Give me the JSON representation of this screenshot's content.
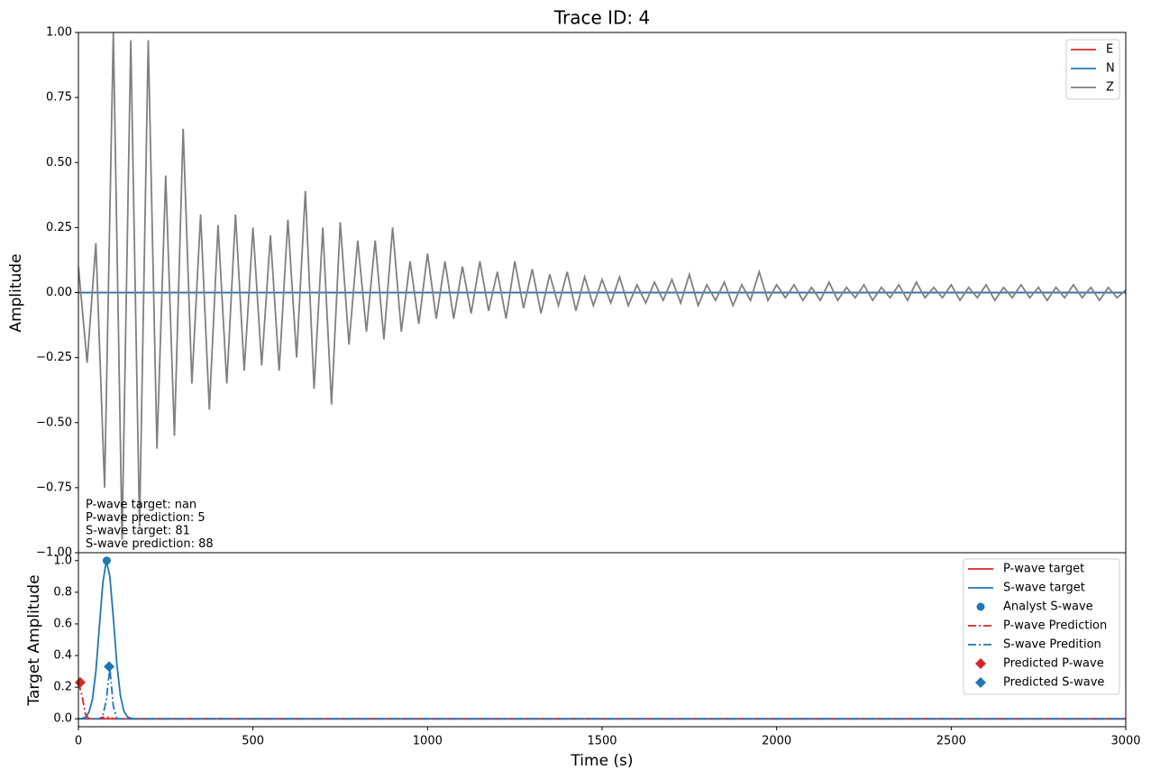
{
  "chart_data": [
    {
      "type": "line",
      "title": "Trace ID: 4",
      "ylabel": "Amplitude",
      "xlim": [
        0,
        3000
      ],
      "ylim": [
        -1,
        1
      ],
      "yticks": [
        {
          "value": -1,
          "label": "−1.00"
        },
        {
          "value": -0.75,
          "label": "−0.75"
        },
        {
          "value": -0.5,
          "label": "−0.50"
        },
        {
          "value": -0.25,
          "label": "−0.25"
        },
        {
          "value": 0,
          "label": "0.00"
        },
        0.25,
        {
          "value": 0.5,
          "label": "0.50"
        },
        0.75,
        {
          "value": 1,
          "label": "1.00"
        }
      ],
      "legend": "upper right",
      "annotations": [
        "P-wave target: nan",
        "P-wave prediction: 5",
        "S-wave target: 81",
        "S-wave prediction: 88"
      ],
      "x": [
        0,
        25,
        50,
        75,
        100,
        125,
        150,
        175,
        200,
        225,
        250,
        275,
        300,
        325,
        350,
        375,
        400,
        425,
        450,
        475,
        500,
        525,
        550,
        575,
        600,
        625,
        650,
        675,
        700,
        725,
        750,
        775,
        800,
        825,
        850,
        875,
        900,
        925,
        950,
        975,
        1000,
        1025,
        1050,
        1075,
        1100,
        1125,
        1150,
        1175,
        1200,
        1225,
        1250,
        1275,
        1300,
        1325,
        1350,
        1375,
        1400,
        1425,
        1450,
        1475,
        1500,
        1525,
        1550,
        1575,
        1600,
        1625,
        1650,
        1675,
        1700,
        1725,
        1750,
        1775,
        1800,
        1825,
        1850,
        1875,
        1900,
        1925,
        1950,
        1975,
        2000,
        2025,
        2050,
        2075,
        2100,
        2125,
        2150,
        2175,
        2200,
        2225,
        2250,
        2275,
        2300,
        2325,
        2350,
        2375,
        2400,
        2425,
        2450,
        2475,
        2500,
        2525,
        2550,
        2575,
        2600,
        2625,
        2650,
        2675,
        2700,
        2725,
        2750,
        2775,
        2800,
        2825,
        2850,
        2875,
        2900,
        2925,
        2950,
        2975,
        3000
      ],
      "series": [
        {
          "name": "E",
          "color": "#d62728",
          "values": [
            0,
            0,
            0,
            0,
            0,
            0,
            0,
            0,
            0,
            0,
            0,
            0,
            0,
            0,
            0,
            0,
            0,
            0,
            0,
            0,
            0,
            0,
            0,
            0,
            0,
            0,
            0,
            0,
            0,
            0,
            0,
            0,
            0,
            0,
            0,
            0,
            0,
            0,
            0,
            0,
            0,
            0,
            0,
            0,
            0,
            0,
            0,
            0,
            0,
            0,
            0,
            0,
            0,
            0,
            0,
            0,
            0,
            0,
            0,
            0,
            0,
            0,
            0,
            0,
            0,
            0,
            0,
            0,
            0,
            0,
            0,
            0,
            0,
            0,
            0,
            0,
            0,
            0,
            0,
            0,
            0,
            0,
            0,
            0,
            0,
            0,
            0,
            0,
            0,
            0,
            0,
            0,
            0,
            0,
            0,
            0,
            0,
            0,
            0,
            0,
            0,
            0,
            0,
            0,
            0,
            0,
            0,
            0,
            0,
            0,
            0,
            0,
            0,
            0,
            0,
            0,
            0,
            0,
            0,
            0,
            0
          ]
        },
        {
          "name": "N",
          "color": "#1f77b4",
          "values": [
            0,
            0,
            0,
            0,
            0,
            0,
            0,
            0,
            0,
            0,
            0,
            0,
            0,
            0,
            0,
            0,
            0,
            0,
            0,
            0,
            0,
            0,
            0,
            0,
            0,
            0,
            0,
            0,
            0,
            0,
            0,
            0,
            0,
            0,
            0,
            0,
            0,
            0,
            0,
            0,
            0,
            0,
            0,
            0,
            0,
            0,
            0,
            0,
            0,
            0,
            0,
            0,
            0,
            0,
            0,
            0,
            0,
            0,
            0,
            0,
            0,
            0,
            0,
            0,
            0,
            0,
            0,
            0,
            0,
            0,
            0,
            0,
            0,
            0,
            0,
            0,
            0,
            0,
            0,
            0,
            0,
            0,
            0,
            0,
            0,
            0,
            0,
            0,
            0,
            0,
            0,
            0,
            0,
            0,
            0,
            0,
            0,
            0,
            0,
            0,
            0,
            0,
            0,
            0,
            0,
            0,
            0,
            0,
            0,
            0,
            0,
            0,
            0,
            0,
            0,
            0,
            0,
            0,
            0,
            0,
            0
          ]
        },
        {
          "name": "Z",
          "color": "#808080",
          "values": [
            0.1,
            -0.27,
            0.19,
            -0.75,
            1.0,
            -0.95,
            0.97,
            -0.9,
            0.97,
            -0.6,
            0.45,
            -0.55,
            0.63,
            -0.35,
            0.3,
            -0.45,
            0.26,
            -0.35,
            0.3,
            -0.3,
            0.25,
            -0.28,
            0.22,
            -0.3,
            0.28,
            -0.25,
            0.39,
            -0.37,
            0.25,
            -0.43,
            0.27,
            -0.2,
            0.2,
            -0.15,
            0.2,
            -0.18,
            0.25,
            -0.15,
            0.12,
            -0.12,
            0.15,
            -0.1,
            0.12,
            -0.1,
            0.1,
            -0.08,
            0.12,
            -0.07,
            0.08,
            -0.1,
            0.12,
            -0.06,
            0.09,
            -0.08,
            0.07,
            -0.05,
            0.08,
            -0.07,
            0.06,
            -0.05,
            0.05,
            -0.04,
            0.06,
            -0.05,
            0.03,
            -0.04,
            0.04,
            -0.03,
            0.05,
            -0.04,
            0.07,
            -0.05,
            0.03,
            -0.03,
            0.04,
            -0.05,
            0.03,
            -0.03,
            0.08,
            -0.03,
            0.03,
            -0.02,
            0.03,
            -0.03,
            0.02,
            -0.03,
            0.04,
            -0.03,
            0.02,
            -0.02,
            0.03,
            -0.03,
            0.02,
            -0.02,
            0.03,
            -0.03,
            0.04,
            -0.02,
            0.02,
            -0.02,
            0.03,
            -0.03,
            0.02,
            -0.02,
            0.03,
            -0.03,
            0.02,
            -0.02,
            0.03,
            -0.02,
            0.02,
            -0.03,
            0.02,
            -0.02,
            0.03,
            -0.02,
            0.02,
            -0.03,
            0.02,
            -0.02,
            0.01
          ]
        }
      ]
    },
    {
      "type": "line",
      "ylabel": "Target Amplitude",
      "xlabel": "Time (s)",
      "xlim": [
        0,
        3000
      ],
      "ylim": [
        -0.05,
        1.05
      ],
      "xticks": [
        0,
        500,
        1000,
        1500,
        2000,
        2500,
        3000
      ],
      "yticks": [
        {
          "value": 0,
          "label": "0.0"
        },
        0.2,
        0.4,
        0.6,
        0.8,
        {
          "value": 1,
          "label": "1.0"
        }
      ],
      "legend": "upper right",
      "x": [
        0,
        10,
        20,
        30,
        40,
        50,
        60,
        70,
        80,
        90,
        100,
        110,
        120,
        130,
        140,
        150,
        160,
        200,
        3000
      ],
      "series": [
        {
          "name": "P-wave target",
          "color": "#d62728",
          "style": "solid",
          "values": [
            0,
            0,
            0,
            0,
            0,
            0,
            0,
            0,
            0,
            0,
            0,
            0,
            0,
            0,
            0,
            0,
            0,
            0,
            0
          ]
        },
        {
          "name": "S-wave target",
          "color": "#1f77b4",
          "style": "solid",
          "values": [
            0,
            0.002,
            0.01,
            0.04,
            0.12,
            0.3,
            0.58,
            0.86,
            1.0,
            0.9,
            0.64,
            0.35,
            0.15,
            0.05,
            0.013,
            0.003,
            0,
            0,
            0
          ]
        },
        {
          "name": "Analyst S-wave",
          "color": "#1f77b4",
          "style": "none",
          "marker": "circle",
          "x": [
            81
          ],
          "values": [
            1.0
          ]
        },
        {
          "name": "P-wave Prediction",
          "color": "#d62728",
          "style": "dashdot",
          "values": [
            0.23,
            0.15,
            0.03,
            0,
            0,
            0,
            0,
            0.01,
            0.01,
            0.01,
            0,
            0,
            0,
            0,
            0,
            0,
            0,
            0,
            0
          ]
        },
        {
          "name": "S-wave Predition",
          "color": "#1f77b4",
          "style": "dashdot",
          "values": [
            0,
            0,
            0,
            0,
            0,
            0,
            0,
            0.02,
            0.12,
            0.32,
            0.08,
            0,
            0,
            0,
            0,
            0,
            0,
            0,
            0
          ]
        },
        {
          "name": "Predicted P-wave",
          "color": "#d62728",
          "style": "none",
          "marker": "diamond",
          "x": [
            5
          ],
          "values": [
            0.23
          ]
        },
        {
          "name": "Predicted S-wave",
          "color": "#1f77b4",
          "style": "none",
          "marker": "diamond",
          "x": [
            88
          ],
          "values": [
            0.33
          ]
        }
      ]
    }
  ]
}
